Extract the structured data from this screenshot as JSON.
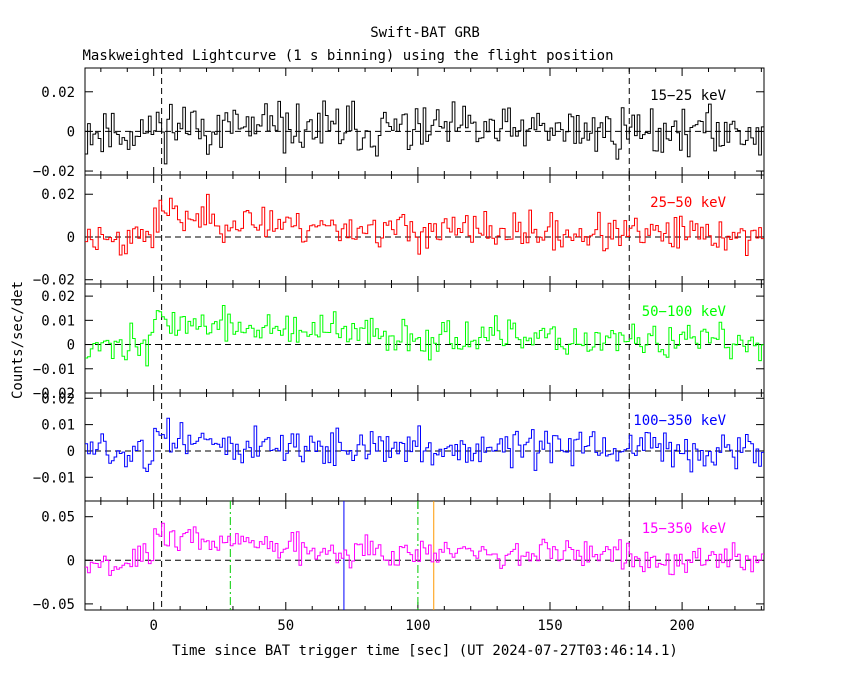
{
  "title": "Swift-BAT GRB",
  "subtitle": "Maskweighted Lightcurve (1 s binning) using the flight position",
  "xlabel": "Time since BAT trigger time [sec] (UT 2024-07-27T03:46:14.1)",
  "ylabel": "Counts/sec/det",
  "chart_data": {
    "type": "line",
    "x_range": [
      -26,
      231
    ],
    "x_ticks": [
      0,
      50,
      100,
      150,
      200
    ],
    "x_tick_labels": [
      "0",
      "50",
      "100",
      "150",
      "200"
    ],
    "binning_sec": 1,
    "panels": [
      {
        "name": "15-25 keV",
        "label": "15−25 keV",
        "color": "#000000",
        "ylim": [
          -0.022,
          0.032
        ],
        "yticks": [
          -0.02,
          0,
          0.02
        ],
        "ytick_labels": [
          "−0.02",
          "0",
          "0.02"
        ],
        "signal": {
          "start": 0,
          "peak": 0.003,
          "duration": 60
        },
        "noise": 0.009,
        "seed": 11
      },
      {
        "name": "25-50 keV",
        "label": "25−50 keV",
        "color": "#ff0000",
        "ylim": [
          -0.022,
          0.029
        ],
        "yticks": [
          -0.02,
          0,
          0.02
        ],
        "ytick_labels": [
          "−0.02",
          "0",
          "0.02"
        ],
        "signal": {
          "start": 0,
          "peak": 0.011,
          "duration": 80
        },
        "noise": 0.006,
        "seed": 23
      },
      {
        "name": "50-100 keV",
        "label": "50−100 keV",
        "color": "#00ff00",
        "ylim": [
          -0.02,
          0.025
        ],
        "yticks": [
          -0.02,
          -0.01,
          0,
          0.01,
          0.02
        ],
        "ytick_labels": [
          "−0.02",
          "−0.01",
          "0",
          "0.01",
          "0.02"
        ],
        "signal": {
          "start": 0,
          "peak": 0.01,
          "duration": 90
        },
        "noise": 0.005,
        "seed": 37
      },
      {
        "name": "100-350 keV",
        "label": "100−350 keV",
        "color": "#0000ff",
        "ylim": [
          -0.019,
          0.022
        ],
        "yticks": [
          -0.01,
          0,
          0.01,
          0.02
        ],
        "ytick_labels": [
          "−0.01",
          "0",
          "0.01",
          "0.02"
        ],
        "signal": {
          "start": 0,
          "peak": 0.004,
          "duration": 70
        },
        "noise": 0.005,
        "seed": 51
      },
      {
        "name": "15-350 keV",
        "label": "15−350 keV",
        "color": "#ff00ff",
        "ylim": [
          -0.057,
          0.068
        ],
        "yticks": [
          -0.05,
          0,
          0.05
        ],
        "ytick_labels": [
          "−0.05",
          "0",
          "0.05"
        ],
        "signal": {
          "start": 0,
          "peak": 0.028,
          "duration": 90
        },
        "noise": 0.012,
        "seed": 67
      }
    ],
    "markers_all_panels": [
      {
        "x": 3,
        "color": "#000000",
        "dash": "dashed"
      },
      {
        "x": 180,
        "color": "#000000",
        "dash": "dashed"
      }
    ],
    "markers_bottom_panel": [
      {
        "x": 29,
        "color": "#00cc00",
        "dash": "dashdot"
      },
      {
        "x": 72,
        "color": "#0000ff",
        "dash": "solid"
      },
      {
        "x": 100,
        "color": "#00cc00",
        "dash": "dashdot"
      },
      {
        "x": 106,
        "color": "#ff9900",
        "dash": "solid"
      }
    ],
    "zero_line": {
      "color": "#000000",
      "dash": "dashed"
    }
  }
}
